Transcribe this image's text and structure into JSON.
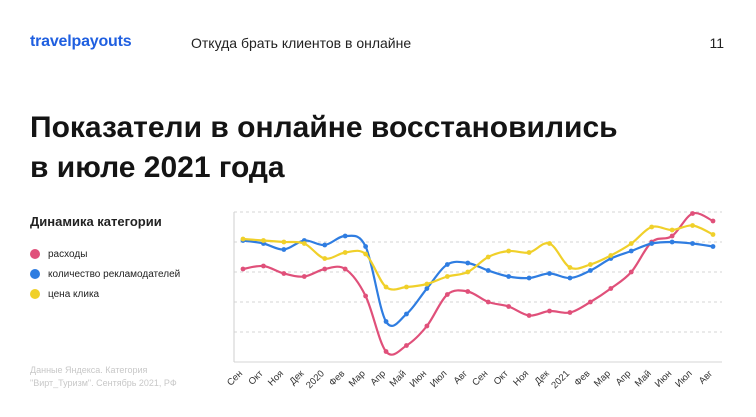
{
  "header": {
    "logo_text": "travelpayouts",
    "subtitle": "Откуда брать клиентов в онлайне",
    "page_number": "11"
  },
  "title": {
    "line1": "Показатели в онлайне восстановились",
    "line2": "в июле 2021 года"
  },
  "legend": {
    "title": "Динамика категории",
    "items": [
      {
        "label": "расходы",
        "color": "#e0507a"
      },
      {
        "label": "количество рекламодателей",
        "color": "#2f7de1"
      },
      {
        "label": "цена клика",
        "color": "#f0d02a"
      }
    ]
  },
  "source": {
    "line1": "Данные Яндекса. Категория",
    "line2": "\"Вирт_Туризм\". Сентябрь 2021, РФ"
  },
  "chart_data": {
    "type": "line",
    "title": "Динамика категории",
    "xlabel": "",
    "ylabel": "",
    "ylim": [
      0,
      5
    ],
    "grid": true,
    "categories": [
      "Сен",
      "Окт",
      "Ноя",
      "Дек",
      "2020",
      "Фев",
      "Мар",
      "Апр",
      "Май",
      "Июн",
      "Июл",
      "Авг",
      "Сен",
      "Окт",
      "Ноя",
      "Дек",
      "2021",
      "Фев",
      "Мар",
      "Апр",
      "Май",
      "Июн",
      "Июл",
      "Авг"
    ],
    "series": [
      {
        "name": "расходы",
        "color": "#e0507a",
        "values": [
          3.1,
          3.2,
          2.95,
          2.85,
          3.1,
          3.1,
          2.2,
          0.35,
          0.55,
          1.2,
          2.25,
          2.35,
          2.0,
          1.85,
          1.55,
          1.7,
          1.65,
          2.0,
          2.45,
          3.0,
          4.0,
          4.2,
          4.95,
          4.7
        ]
      },
      {
        "name": "количество рекламодателей",
        "color": "#2f7de1",
        "values": [
          4.05,
          3.95,
          3.75,
          4.05,
          3.9,
          4.2,
          3.85,
          1.35,
          1.6,
          2.45,
          3.25,
          3.3,
          3.05,
          2.85,
          2.8,
          2.95,
          2.8,
          3.05,
          3.45,
          3.7,
          3.95,
          4.0,
          3.95,
          3.85
        ]
      },
      {
        "name": "цена клика",
        "color": "#f0d02a",
        "values": [
          4.1,
          4.05,
          4.0,
          3.95,
          3.45,
          3.65,
          3.6,
          2.5,
          2.5,
          2.6,
          2.85,
          3.0,
          3.5,
          3.7,
          3.65,
          3.95,
          3.15,
          3.25,
          3.55,
          3.95,
          4.5,
          4.4,
          4.55,
          4.25
        ]
      }
    ]
  }
}
